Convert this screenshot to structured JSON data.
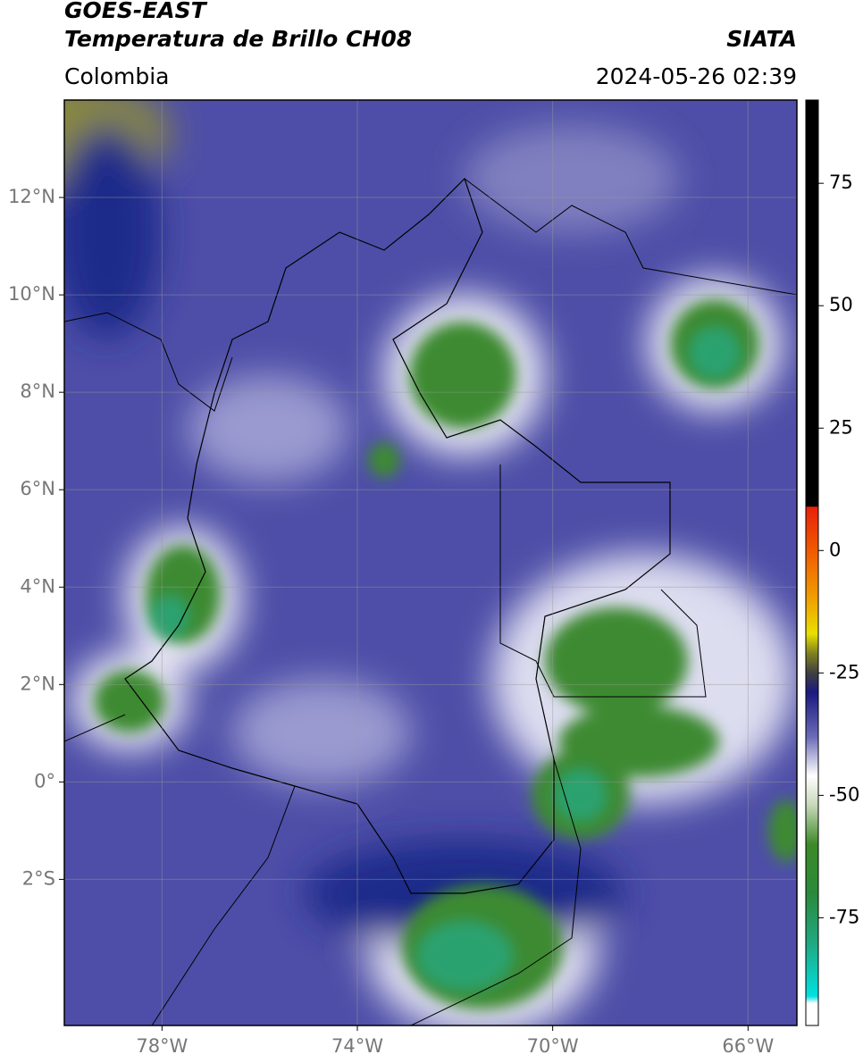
{
  "chart_data": {
    "type": "map",
    "title": "GOES-EAST",
    "subtitle": "Temperatura de Brillo CH08",
    "source": "SIATA",
    "region": "Colombia",
    "datetime": "2024-05-26 02:39",
    "xlim": [
      -80,
      -65
    ],
    "ylim": [
      -5,
      14
    ],
    "xticks": [
      {
        "value": -78,
        "label": "78°W"
      },
      {
        "value": -74,
        "label": "74°W"
      },
      {
        "value": -70,
        "label": "70°W"
      },
      {
        "value": -66,
        "label": "66°W"
      }
    ],
    "yticks": [
      {
        "value": 12,
        "label": "12°N"
      },
      {
        "value": 10,
        "label": "10°N"
      },
      {
        "value": 8,
        "label": "8°N"
      },
      {
        "value": 6,
        "label": "6°N"
      },
      {
        "value": 4,
        "label": "4°N"
      },
      {
        "value": 2,
        "label": "2°N"
      },
      {
        "value": 0,
        "label": "0°"
      },
      {
        "value": -2,
        "label": "2°S"
      }
    ],
    "grid": true,
    "colorbar": {
      "lim": [
        -97,
        92
      ],
      "ticks": [
        75,
        50,
        25,
        0,
        -25,
        -50,
        -75
      ],
      "stops": [
        {
          "value": 92,
          "color": "#000000"
        },
        {
          "value": 9,
          "color": "#000000"
        },
        {
          "value": 8.9,
          "color": "#e8200a"
        },
        {
          "value": 0,
          "color": "#f05a00"
        },
        {
          "value": -10,
          "color": "#f0a000"
        },
        {
          "value": -17,
          "color": "#e8e000"
        },
        {
          "value": -21,
          "color": "#808020"
        },
        {
          "value": -25,
          "color": "#404040"
        },
        {
          "value": -29,
          "color": "#1a1a80"
        },
        {
          "value": -38,
          "color": "#6a6ab8"
        },
        {
          "value": -46,
          "color": "#ffffff"
        },
        {
          "value": -52,
          "color": "#c8d8b8"
        },
        {
          "value": -60,
          "color": "#3c8a28"
        },
        {
          "value": -70,
          "color": "#2a8a3a"
        },
        {
          "value": -80,
          "color": "#20a880"
        },
        {
          "value": -91,
          "color": "#00e0e0"
        },
        {
          "value": -92.5,
          "color": "#ffffff"
        },
        {
          "value": -97,
          "color": "#ffffff"
        }
      ]
    }
  }
}
